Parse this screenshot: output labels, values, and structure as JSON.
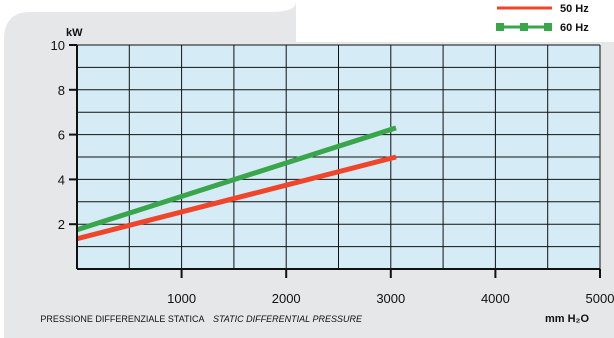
{
  "chart_data": {
    "type": "line",
    "ylabel": "kW",
    "xlabel_it": "PRESSIONE DIFFERENZIALE STATICA",
    "xlabel_en": "STATIC DIFFERENTIAL PRESSURE",
    "xunit": "mm H₂O",
    "xlim": [
      0,
      5000
    ],
    "ylim": [
      0,
      10
    ],
    "x_ticks": [
      1000,
      2000,
      3000,
      4000,
      5000
    ],
    "y_ticks": [
      2,
      4,
      6,
      8,
      10
    ],
    "grid": true,
    "legend_position": "top-right",
    "series": [
      {
        "name": "50 Hz",
        "color": "#f0452a",
        "marker": "none",
        "x": [
          0,
          3050
        ],
        "y": [
          1.35,
          5.0
        ]
      },
      {
        "name": "60 Hz",
        "color": "#3aa64b",
        "marker": "square",
        "x": [
          0,
          3050
        ],
        "y": [
          1.75,
          6.3
        ]
      }
    ]
  },
  "colors": {
    "panel_bg": "#e6e7e8",
    "plot_bg": "#d5ecf7",
    "grid": "#111111"
  }
}
